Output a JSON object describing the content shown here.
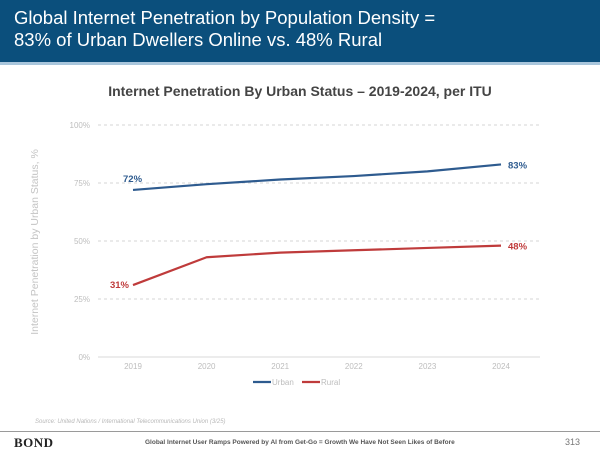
{
  "header": {
    "title": "Global Internet Penetration by Population Density =\n83% of Urban Dwellers Online vs. 48% Rural"
  },
  "chart_data": {
    "type": "line",
    "title": "Internet Penetration By Urban Status – 2019-2024, per ITU",
    "xlabel": "",
    "ylabel": "Internet Penetration by Urban Status, %",
    "x": [
      "2019",
      "2020",
      "2021",
      "2022",
      "2023",
      "2024"
    ],
    "ylim": [
      0,
      100
    ],
    "yticks": [
      0,
      25,
      50,
      75,
      100
    ],
    "ytick_labels": [
      "0%",
      "25%",
      "50%",
      "75%",
      "100%"
    ],
    "grid": true,
    "legend_position": "bottom-center",
    "series": [
      {
        "name": "Urban",
        "color": "#2e5b8f",
        "values": [
          72,
          74.5,
          76.5,
          78,
          80,
          83
        ],
        "labels": [
          {
            "index": 0,
            "text": "72%"
          },
          {
            "index": 5,
            "text": "83%"
          }
        ]
      },
      {
        "name": "Rural",
        "color": "#bf3b3b",
        "values": [
          31,
          43,
          45,
          46,
          47,
          48
        ],
        "labels": [
          {
            "index": 0,
            "text": "31%"
          },
          {
            "index": 5,
            "text": "48%"
          }
        ]
      }
    ]
  },
  "source": "Source: United Nations / International Telecommunications Union (3/25)",
  "footer": {
    "logo": "BOND",
    "text": "Global Internet User Ramps Powered by AI from Get-Go = Growth We Have Not Seen Likes of Before",
    "page_number": "313"
  }
}
